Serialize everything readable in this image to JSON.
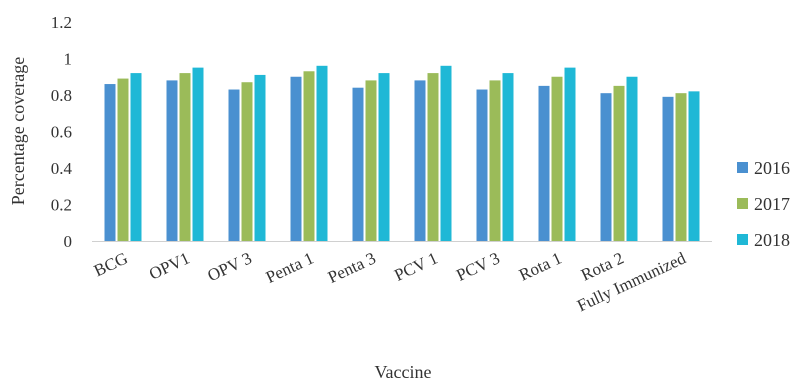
{
  "chart_data": {
    "type": "bar",
    "title": "",
    "xlabel": "Vaccine",
    "ylabel": "Percentage coverage",
    "ylim": [
      0,
      1.2
    ],
    "yticks": [
      "0",
      "0.2",
      "0.4",
      "0.6",
      "0.8",
      "1",
      "1.2"
    ],
    "ytick_values": [
      0,
      0.2,
      0.4,
      0.6,
      0.8,
      1,
      1.2
    ],
    "grid": false,
    "legend_position": "right",
    "categories": [
      "BCG",
      "OPV1",
      "OPV 3",
      "Penta 1",
      "Penta 3",
      "PCV 1",
      "PCV 3",
      "Rota 1",
      "Rota 2",
      "Fully Immunized"
    ],
    "series": [
      {
        "name": "2016",
        "color": "#4a90d0",
        "values": [
          0.86,
          0.88,
          0.83,
          0.9,
          0.84,
          0.88,
          0.83,
          0.85,
          0.81,
          0.79
        ]
      },
      {
        "name": "2017",
        "color": "#9bbb59",
        "values": [
          0.89,
          0.92,
          0.87,
          0.93,
          0.88,
          0.92,
          0.88,
          0.9,
          0.85,
          0.81
        ]
      },
      {
        "name": "2018",
        "color": "#1fb8d6",
        "values": [
          0.92,
          0.95,
          0.91,
          0.96,
          0.92,
          0.96,
          0.92,
          0.95,
          0.9,
          0.82
        ]
      }
    ]
  }
}
